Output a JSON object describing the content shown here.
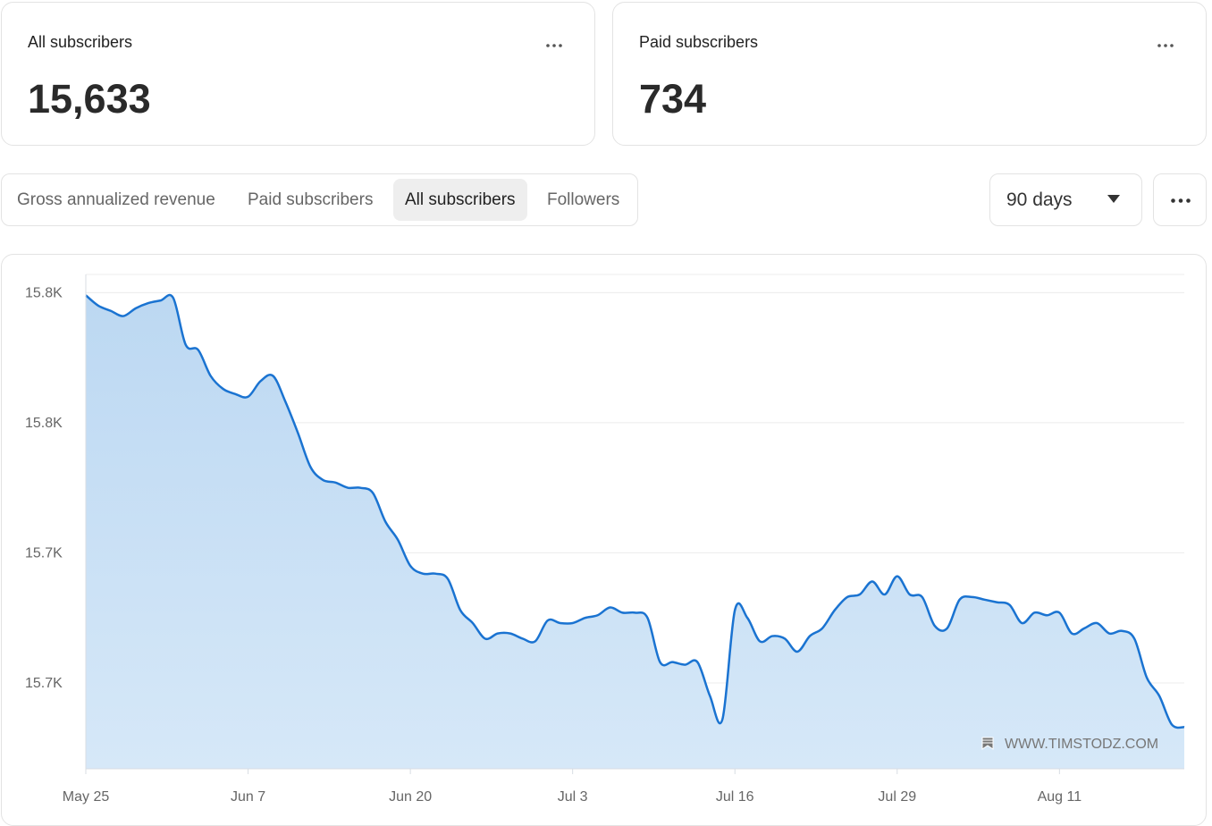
{
  "cards": [
    {
      "title": "All subscribers",
      "value": "15,633"
    },
    {
      "title": "Paid subscribers",
      "value": "734"
    }
  ],
  "tabs": [
    "Gross annualized revenue",
    "Paid subscribers",
    "All subscribers",
    "Followers"
  ],
  "active_tab": 2,
  "range": "90 days",
  "watermark": "WWW.TIMSTODZ.COM",
  "chart_data": {
    "type": "area",
    "categories": [
      "May 25",
      null,
      null,
      null,
      null,
      null,
      null,
      null,
      null,
      null,
      null,
      null,
      null,
      "Jun 7",
      null,
      null,
      null,
      null,
      null,
      null,
      null,
      null,
      null,
      null,
      null,
      null,
      "Jun 20",
      null,
      null,
      null,
      null,
      null,
      null,
      null,
      null,
      null,
      null,
      null,
      null,
      "Jul 3",
      null,
      null,
      null,
      null,
      null,
      null,
      null,
      null,
      null,
      null,
      null,
      null,
      "Jul 16",
      null,
      null,
      null,
      null,
      null,
      null,
      null,
      null,
      null,
      null,
      null,
      null,
      "Jul 29",
      null,
      null,
      null,
      null,
      null,
      null,
      null,
      null,
      null,
      null,
      null,
      null,
      "Aug 11",
      null,
      null,
      null,
      null,
      null,
      null,
      null,
      null,
      null,
      null
    ],
    "values": [
      15799,
      15795,
      15793,
      15791,
      15794,
      15796,
      15797,
      15798,
      15780,
      15778,
      15768,
      15763,
      15761,
      15760,
      15766,
      15768,
      15758,
      15746,
      15733,
      15728,
      15727,
      15725,
      15725,
      15723,
      15712,
      15705,
      15695,
      15692,
      15692,
      15690,
      15678,
      15673,
      15667,
      15669,
      15669,
      15667,
      15666,
      15674,
      15673,
      15673,
      15675,
      15676,
      15679,
      15677,
      15677,
      15675,
      15658,
      15658,
      15657,
      15658,
      15645,
      15636,
      15678,
      15675,
      15666,
      15668,
      15667,
      15662,
      15668,
      15671,
      15678,
      15683,
      15684,
      15689,
      15684,
      15691,
      15684,
      15683,
      15672,
      15671,
      15682,
      15683,
      15682,
      15681,
      15680,
      15673,
      15677,
      15676,
      15677,
      15669,
      15671,
      15673,
      15669,
      15670,
      15667,
      15652,
      15645,
      15634,
      15633
    ],
    "color": "#1a73d1",
    "ylim": [
      15617,
      15807
    ],
    "yticks": [
      {
        "value": 15650,
        "label": "15.7K"
      },
      {
        "value": 15700,
        "label": "15.7K"
      },
      {
        "value": 15750,
        "label": "15.8K"
      },
      {
        "value": 15800,
        "label": "15.8K"
      }
    ],
    "grid": true
  }
}
